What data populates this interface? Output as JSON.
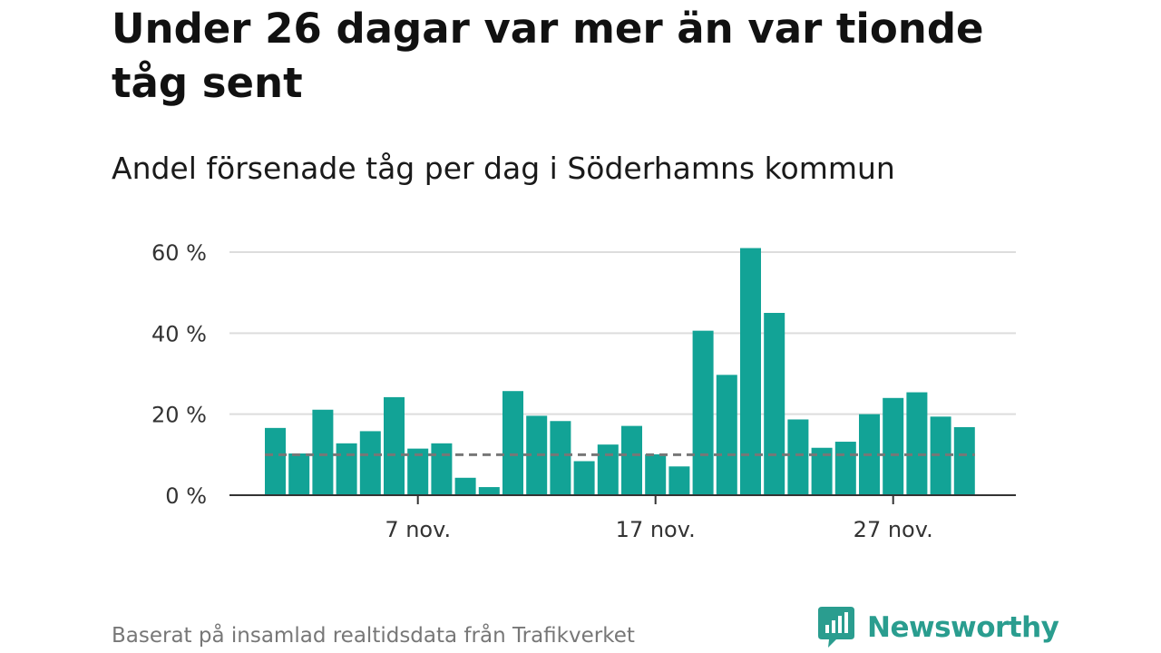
{
  "title": "Under 26 dagar var mer än var tionde tåg sent",
  "subtitle": "Andel försenade tåg per dag i Söderhamns kommun",
  "source": "Baserat på insamlad realtidsdata från Trafikverket",
  "brand": {
    "name": "Newsworthy",
    "icon": "newsworthy-logo-icon",
    "color": "#2a9d8f"
  },
  "colors": {
    "bar": "#12a396",
    "grid": "#dddddd",
    "axis": "#333333",
    "reference_line": "#777777"
  },
  "chart_data": {
    "type": "bar",
    "title": "Under 26 dagar var mer än var tionde tåg sent",
    "subtitle": "Andel försenade tåg per dag i Söderhamns kommun",
    "xlabel": "",
    "ylabel": "",
    "categories": [
      "1 nov.",
      "2 nov.",
      "3 nov.",
      "4 nov.",
      "5 nov.",
      "6 nov.",
      "7 nov.",
      "8 nov.",
      "9 nov.",
      "10 nov.",
      "11 nov.",
      "12 nov.",
      "13 nov.",
      "14 nov.",
      "15 nov.",
      "16 nov.",
      "17 nov.",
      "18 nov.",
      "19 nov.",
      "20 nov.",
      "21 nov.",
      "22 nov.",
      "23 nov.",
      "24 nov.",
      "25 nov.",
      "26 nov.",
      "27 nov.",
      "28 nov.",
      "29 nov.",
      "30 nov."
    ],
    "values": [
      16.6,
      10.3,
      21.1,
      12.8,
      15.8,
      24.2,
      11.5,
      12.8,
      4.3,
      2.0,
      25.7,
      19.6,
      18.3,
      8.4,
      12.5,
      17.1,
      10.1,
      7.1,
      40.6,
      29.7,
      61.0,
      45.0,
      18.7,
      11.7,
      13.2,
      20.0,
      24.0,
      25.4,
      19.4,
      16.8
    ],
    "unit": "%",
    "ylim": [
      0,
      60
    ],
    "yticks": [
      0,
      20,
      40,
      60
    ],
    "ytick_labels": [
      "0 %",
      "20 %",
      "40 %",
      "60 %"
    ],
    "xtick_positions": [
      6,
      16,
      26
    ],
    "xtick_labels": [
      "7 nov.",
      "17 nov.",
      "27 nov."
    ],
    "reference_line": {
      "value": 10,
      "style": "dashed"
    },
    "grid": true,
    "legend": "none"
  }
}
